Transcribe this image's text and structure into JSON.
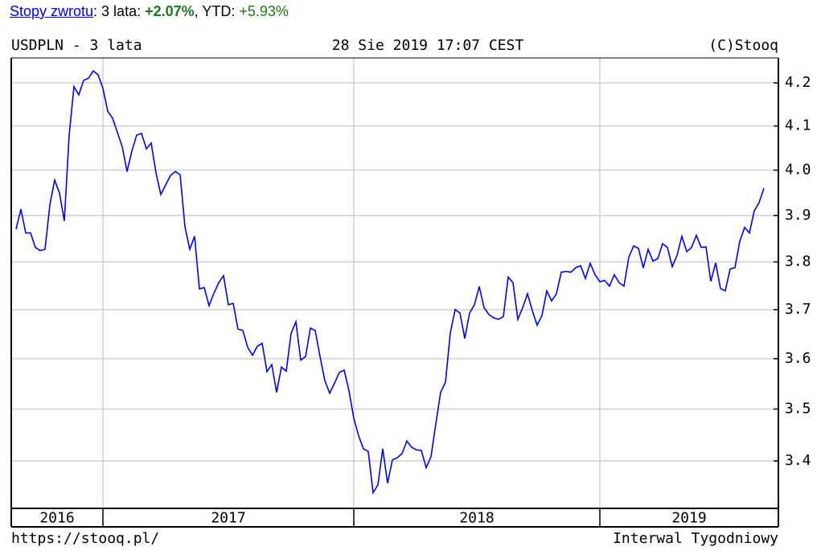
{
  "header": {
    "parts": [
      {
        "text": "Stopy zwrotu",
        "style": "link"
      },
      {
        "text": ": 3 lata: ",
        "style": "plain"
      },
      {
        "text": "+2.07%",
        "style": "bold-green"
      },
      {
        "text": ", YTD: ",
        "style": "plain"
      },
      {
        "text": "+5.93%",
        "style": "green"
      }
    ]
  },
  "chart_data": {
    "type": "line",
    "title": "USDPLN - 3 lata",
    "timestamp": "28 Sie 2019 17:07 CEST",
    "copyright": "(C)Stooq",
    "source": "https://stooq.pl/",
    "interval": "Interwal Tygodniowy",
    "color": "#0000ff",
    "log_scale": true,
    "grid": true,
    "xlim": [
      -1,
      158
    ],
    "xgrid": [
      18,
      70,
      121
    ],
    "year_labels": [
      "2016",
      "2017",
      "2018",
      "2019"
    ],
    "ylim": [
      3.311,
      4.259
    ],
    "yticks": [
      3.4,
      3.5,
      3.6,
      3.7,
      3.8,
      3.9,
      {
        "value": 4,
        "label": "4.0"
      },
      4.1,
      4.2
    ],
    "values": [
      3.87,
      3.914,
      3.862,
      3.862,
      3.831,
      3.824,
      3.827,
      3.923,
      3.978,
      3.949,
      3.888,
      4.079,
      4.191,
      4.172,
      4.206,
      4.211,
      4.228,
      4.219,
      4.187,
      4.134,
      4.118,
      4.085,
      4.053,
      3.997,
      4.043,
      4.079,
      4.083,
      4.048,
      4.061,
      3.994,
      3.946,
      3.967,
      3.988,
      3.997,
      3.99,
      3.876,
      3.827,
      3.855,
      3.743,
      3.746,
      3.708,
      3.734,
      3.756,
      3.771,
      3.71,
      3.713,
      3.66,
      3.657,
      3.623,
      3.607,
      3.625,
      3.631,
      3.574,
      3.588,
      3.533,
      3.583,
      3.575,
      3.651,
      3.675,
      3.597,
      3.604,
      3.662,
      3.657,
      3.604,
      3.556,
      3.531,
      3.551,
      3.572,
      3.577,
      3.536,
      3.482,
      3.448,
      3.423,
      3.418,
      3.34,
      3.355,
      3.423,
      3.358,
      3.402,
      3.406,
      3.414,
      3.438,
      3.426,
      3.421,
      3.42,
      3.387,
      3.408,
      3.471,
      3.533,
      3.553,
      3.652,
      3.7,
      3.693,
      3.641,
      3.693,
      3.71,
      3.748,
      3.704,
      3.69,
      3.683,
      3.68,
      3.686,
      3.768,
      3.756,
      3.68,
      3.704,
      3.733,
      3.698,
      3.668,
      3.688,
      3.739,
      3.718,
      3.733,
      3.778,
      3.78,
      3.778,
      3.788,
      3.792,
      3.765,
      3.797,
      3.773,
      3.758,
      3.761,
      3.749,
      3.773,
      3.756,
      3.749,
      3.81,
      3.834,
      3.829,
      3.787,
      3.827,
      3.802,
      3.807,
      3.839,
      3.831,
      3.79,
      3.814,
      3.855,
      3.822,
      3.831,
      3.857,
      3.831,
      3.832,
      3.759,
      3.798,
      3.744,
      3.739,
      3.785,
      3.788,
      3.844,
      3.874,
      3.862,
      3.91,
      3.928,
      3.96
    ]
  }
}
